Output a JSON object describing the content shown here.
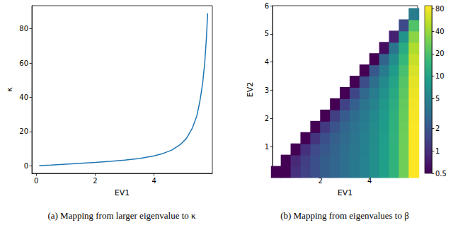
{
  "chart_data": [
    {
      "type": "line",
      "title": "(a) Mapping from larger eigenvalue to κ",
      "x_label": "EV1",
      "y_label": "κ",
      "color": "#1f77b4",
      "x": [
        0.1,
        0.5,
        1.0,
        1.5,
        2.0,
        2.5,
        3.0,
        3.5,
        4.0,
        4.3,
        4.6,
        4.9,
        5.1,
        5.3,
        5.45,
        5.55,
        5.65,
        5.72,
        5.78,
        5.82
      ],
      "values": [
        0.1,
        0.45,
        1.0,
        1.5,
        2.0,
        2.6,
        3.3,
        4.3,
        5.8,
        7.2,
        9.2,
        12.5,
        16,
        22,
        29,
        37,
        48,
        60,
        75,
        89
      ],
      "xlim": [
        -0.15,
        5.98
      ],
      "xticks": [
        0,
        2,
        4
      ],
      "ylim": [
        -4.4,
        93.5
      ],
      "yticks": [
        0,
        20,
        40,
        60,
        80
      ]
    },
    {
      "type": "scatter",
      "title": "(b) Mapping from eigenvalues to β",
      "x_label": "EV1",
      "y_label": "EV2",
      "xlim": [
        0.05,
        5.95
      ],
      "xticks": [
        2,
        4
      ],
      "ylim": [
        0.05,
        6.0
      ],
      "yticks": [
        1,
        2,
        3,
        4,
        5,
        6
      ],
      "colorbar": {
        "range": [
          0.5,
          88
        ],
        "ticks": [
          0.5,
          1,
          2,
          5,
          10,
          20,
          40,
          80
        ]
      },
      "cells": [
        {
          "x": 0.2,
          "y": [
            0.1
          ],
          "values": [
            0.5
          ]
        },
        {
          "x": 0.6,
          "y": [
            0.1,
            0.5
          ],
          "values": [
            0.5,
            0.5
          ]
        },
        {
          "x": 1.0,
          "y": [
            0.1,
            0.5,
            0.9
          ],
          "values": [
            1.0,
            0.9,
            0.5
          ]
        },
        {
          "x": 1.4,
          "y": [
            0.1,
            0.5,
            0.9,
            1.3
          ],
          "values": [
            1.4,
            1.3,
            1.0,
            0.5
          ]
        },
        {
          "x": 1.8,
          "y": [
            0.1,
            0.5,
            0.9,
            1.3,
            1.7
          ],
          "values": [
            1.8,
            1.8,
            1.6,
            1.1,
            0.5
          ]
        },
        {
          "x": 2.2,
          "y": [
            0.1,
            0.5,
            0.9,
            1.3,
            1.7,
            2.1
          ],
          "values": [
            2.3,
            2.3,
            2.1,
            1.8,
            1.2,
            0.5
          ]
        },
        {
          "x": 2.6,
          "y": [
            0.1,
            0.5,
            0.9,
            1.3,
            1.7,
            2.1,
            2.5
          ],
          "values": [
            2.7,
            2.7,
            2.6,
            2.4,
            1.9,
            1.3,
            0.5
          ]
        },
        {
          "x": 3.0,
          "y": [
            0.1,
            0.5,
            0.9,
            1.3,
            1.7,
            2.1,
            2.5,
            2.9
          ],
          "values": [
            3.3,
            3.3,
            3.2,
            3.0,
            2.7,
            2.2,
            1.4,
            0.5
          ]
        },
        {
          "x": 3.4,
          "y": [
            0.1,
            0.5,
            0.9,
            1.3,
            1.7,
            2.1,
            2.5,
            2.9,
            3.3
          ],
          "values": [
            4.0,
            4.0,
            3.9,
            3.8,
            3.5,
            3.1,
            2.4,
            1.5,
            0.5
          ]
        },
        {
          "x": 3.8,
          "y": [
            0.1,
            0.5,
            0.9,
            1.3,
            1.7,
            2.1,
            2.5,
            2.9,
            3.3,
            3.7
          ],
          "values": [
            5.0,
            5.0,
            4.9,
            4.8,
            4.6,
            4.2,
            3.6,
            2.8,
            1.7,
            0.5
          ]
        },
        {
          "x": 4.2,
          "y": [
            0.1,
            0.5,
            0.9,
            1.3,
            1.7,
            2.1,
            2.5,
            2.9,
            3.3,
            3.7,
            4.1
          ],
          "values": [
            6.5,
            6.5,
            6.4,
            6.3,
            6.1,
            5.7,
            5.1,
            4.4,
            3.3,
            2.1,
            0.5
          ]
        },
        {
          "x": 4.6,
          "y": [
            0.1,
            0.5,
            0.9,
            1.3,
            1.7,
            2.1,
            2.5,
            2.9,
            3.3,
            3.7,
            4.1,
            4.5
          ],
          "values": [
            9,
            9,
            8.9,
            8.8,
            8.5,
            8.1,
            7.6,
            6.8,
            5.7,
            4.3,
            2.6,
            0.6
          ]
        },
        {
          "x": 5.0,
          "y": [
            0.1,
            0.5,
            0.9,
            1.3,
            1.7,
            2.1,
            2.5,
            2.9,
            3.3,
            3.7,
            4.1,
            4.5,
            4.9
          ],
          "values": [
            14,
            14,
            13.9,
            13.7,
            13.5,
            13,
            12.3,
            11.3,
            10,
            8.3,
            6.3,
            3.8,
            0.8
          ]
        },
        {
          "x": 5.4,
          "y": [
            0.1,
            0.5,
            0.9,
            1.3,
            1.7,
            2.1,
            2.5,
            2.9,
            3.3,
            3.7,
            4.1,
            4.5,
            4.9,
            5.3
          ],
          "values": [
            28,
            28,
            27.9,
            27.6,
            27.1,
            26.3,
            25.2,
            23.7,
            21.6,
            19,
            15.8,
            11.8,
            7.1,
            1.6
          ]
        },
        {
          "x": 5.8,
          "y": [
            0.1,
            0.5,
            0.9,
            1.3,
            1.7,
            2.1,
            2.5,
            2.9,
            3.3,
            3.7,
            4.1,
            4.5,
            4.9,
            5.3,
            5.7
          ],
          "values": [
            88,
            88,
            87.6,
            87,
            85.8,
            83.9,
            81,
            77,
            71.8,
            65.1,
            56.9,
            46.9,
            34.9,
            20.8,
            4.4
          ]
        }
      ]
    }
  ]
}
